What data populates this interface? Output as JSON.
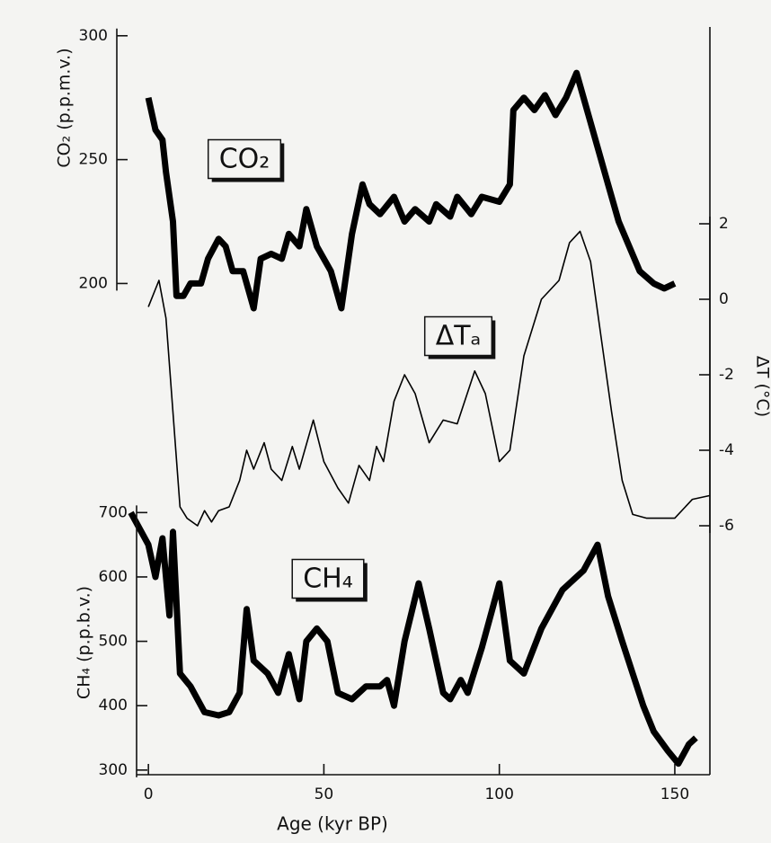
{
  "chart_data": [
    {
      "type": "line",
      "y_label": "CO₂ (p.p.m.v.)",
      "annotation": "CO₂",
      "color": "#000000",
      "x": [
        0,
        2,
        4,
        5,
        7,
        8,
        10,
        12,
        15,
        17,
        20,
        22,
        24,
        27,
        30,
        32,
        35,
        38,
        40,
        43,
        45,
        48,
        52,
        55,
        58,
        61,
        63,
        66,
        70,
        73,
        76,
        80,
        82,
        86,
        88,
        92,
        95,
        100,
        103,
        104,
        107,
        110,
        113,
        116,
        119,
        122,
        125,
        128,
        131,
        134,
        137,
        140,
        144,
        147,
        150
      ],
      "values": [
        275,
        262,
        258,
        245,
        225,
        195,
        195,
        200,
        200,
        210,
        218,
        215,
        205,
        205,
        190,
        210,
        212,
        210,
        220,
        215,
        230,
        215,
        205,
        190,
        220,
        240,
        232,
        228,
        235,
        225,
        230,
        225,
        232,
        227,
        235,
        228,
        235,
        233,
        240,
        270,
        275,
        270,
        276,
        268,
        275,
        285,
        270,
        255,
        240,
        225,
        215,
        205,
        200,
        198,
        200
      ],
      "ylim": [
        190,
        305
      ],
      "yticks": [
        200,
        250,
        300
      ]
    },
    {
      "type": "line",
      "y_label": "ΔT (°C)",
      "annotation": "ΔTₐ",
      "color": "#000000",
      "x": [
        0,
        3,
        5,
        7,
        9,
        11,
        14,
        16,
        18,
        20,
        23,
        26,
        28,
        30,
        33,
        35,
        38,
        41,
        43,
        47,
        50,
        54,
        57,
        60,
        63,
        65,
        67,
        70,
        73,
        76,
        80,
        84,
        88,
        93,
        96,
        100,
        103,
        107,
        112,
        117,
        120,
        123,
        126,
        129,
        132,
        135,
        138,
        142,
        146,
        150,
        155,
        160
      ],
      "values": [
        -0.2,
        0.5,
        -0.5,
        -3,
        -5.5,
        -5.8,
        -6,
        -5.6,
        -5.9,
        -5.6,
        -5.5,
        -4.8,
        -4,
        -4.5,
        -3.8,
        -4.5,
        -4.8,
        -3.9,
        -4.5,
        -3.2,
        -4.3,
        -5,
        -5.4,
        -4.4,
        -4.8,
        -3.9,
        -4.3,
        -2.7,
        -2,
        -2.5,
        -3.8,
        -3.2,
        -3.3,
        -1.9,
        -2.5,
        -4.3,
        -4,
        -1.5,
        0,
        0.5,
        1.5,
        1.8,
        1,
        -1,
        -3,
        -4.8,
        -5.7,
        -5.8,
        -5.8,
        -5.8,
        -5.3,
        -5.2
      ],
      "ylim": [
        -6.5,
        3
      ],
      "yticks": [
        -6,
        -4,
        -2,
        0,
        2
      ]
    },
    {
      "type": "line",
      "y_label": "CH₄ (p.p.b.v.)",
      "annotation": "CH₄",
      "color": "#000000",
      "x": [
        -5,
        0,
        2,
        4,
        6,
        7,
        9,
        12,
        16,
        20,
        23,
        26,
        28,
        30,
        34,
        37,
        40,
        43,
        45,
        48,
        51,
        54,
        58,
        62,
        66,
        68,
        70,
        73,
        77,
        80,
        84,
        86,
        89,
        91,
        95,
        98,
        100,
        103,
        107,
        112,
        118,
        124,
        128,
        131,
        135,
        138,
        141,
        144,
        148,
        151,
        154,
        156
      ],
      "values": [
        700,
        650,
        600,
        660,
        540,
        670,
        450,
        430,
        390,
        385,
        390,
        420,
        550,
        470,
        450,
        420,
        480,
        410,
        500,
        520,
        500,
        420,
        410,
        430,
        430,
        440,
        400,
        500,
        590,
        520,
        420,
        410,
        440,
        420,
        490,
        550,
        590,
        470,
        450,
        520,
        580,
        610,
        650,
        570,
        500,
        450,
        400,
        360,
        330,
        310,
        340,
        350
      ],
      "ylim": [
        290,
        720
      ],
      "yticks": [
        300,
        400,
        500,
        600,
        700
      ],
      "x_label": "Age (kyr BP)",
      "xlim": [
        -9,
        160
      ],
      "xticks": [
        0,
        50,
        100,
        150
      ]
    }
  ]
}
